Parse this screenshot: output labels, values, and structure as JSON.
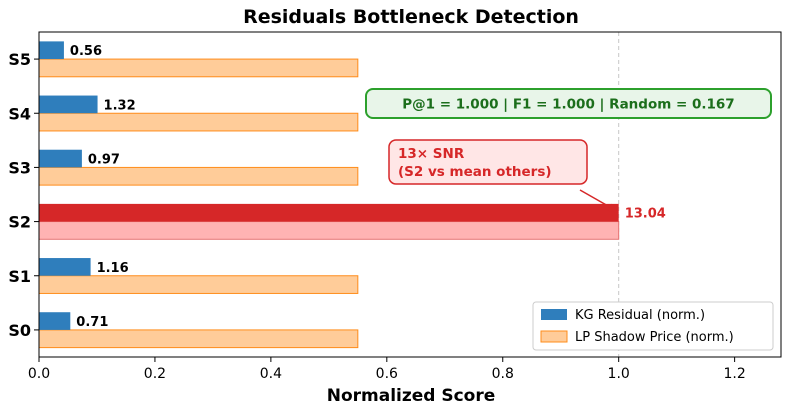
{
  "chart_data": {
    "type": "bar",
    "orientation": "horizontal",
    "title": "Residuals Bottleneck Detection",
    "xlabel": "Normalized Score",
    "ylabel": "",
    "xlim": [
      0,
      1.28
    ],
    "xticks": [
      0.0,
      0.2,
      0.4,
      0.6,
      0.8,
      1.0,
      1.2
    ],
    "xtick_labels": [
      "0.0",
      "0.2",
      "0.4",
      "0.6",
      "0.8",
      "1.0",
      "1.2"
    ],
    "categories": [
      "S0",
      "S1",
      "S2",
      "S3",
      "S4",
      "S5"
    ],
    "highlight_category": "S2",
    "reference_line_x": 1.0,
    "series": [
      {
        "name": "KG Residual (norm.)",
        "values": [
          0.054,
          0.089,
          1.0,
          0.074,
          0.101,
          0.043
        ],
        "data_labels": [
          "0.71",
          "1.16",
          "13.04",
          "0.97",
          "1.32",
          "0.56"
        ],
        "color": "#2f7ebc",
        "highlight_color": "#d62728"
      },
      {
        "name": "LP Shadow Price (norm.)",
        "values": [
          0.55,
          0.55,
          1.0,
          0.55,
          0.55,
          0.55
        ],
        "color": "#ffcc99",
        "edge_color": "#ff8c1a",
        "highlight_color": "#ffb3b3",
        "highlight_edge_color": "#e57373"
      }
    ],
    "annotations": {
      "metrics_box": "P@1 = 1.000  |  F1 = 1.000  |  Random = 0.167",
      "snr_line1": "13× SNR",
      "snr_line2": "(S2 vs mean others)"
    },
    "legend_position": "lower right",
    "grid": false
  }
}
